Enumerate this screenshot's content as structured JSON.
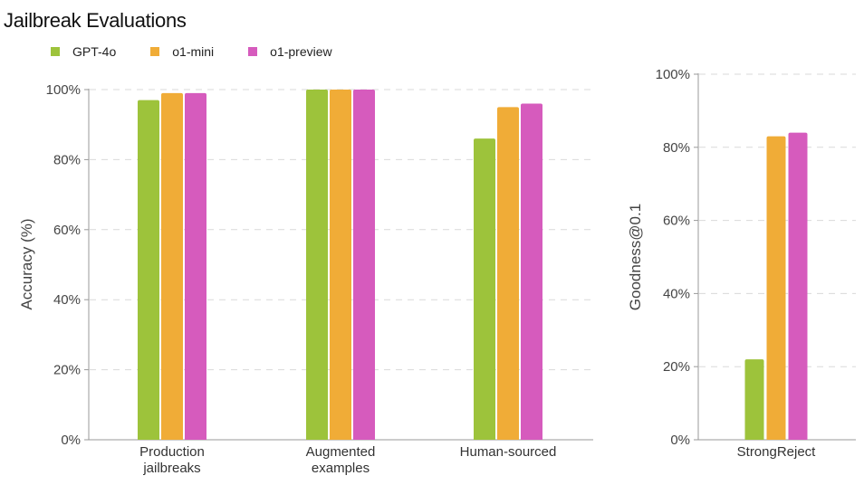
{
  "title": "Jailbreak Evaluations",
  "legend": [
    {
      "label": "GPT-4o",
      "color": "#9dc33b"
    },
    {
      "label": "o1-mini",
      "color": "#f0ac37"
    },
    {
      "label": "o1-preview",
      "color": "#d65bbd"
    }
  ],
  "chart_data": [
    {
      "type": "bar",
      "title": "Jailbreak Evaluations",
      "xlabel": "",
      "ylabel": "Accuracy (%)",
      "ylim": [
        0,
        100
      ],
      "yticks": [
        "0%",
        "20%",
        "40%",
        "60%",
        "80%",
        "100%"
      ],
      "ytick_values": [
        0,
        20,
        40,
        60,
        80,
        100
      ],
      "grid": true,
      "legend_position": "top-left",
      "categories": [
        [
          "Production",
          "jailbreaks"
        ],
        [
          "Augmented",
          "examples"
        ],
        [
          "Human-sourced"
        ]
      ],
      "series": [
        {
          "name": "GPT-4o",
          "values": [
            97,
            100,
            86
          ]
        },
        {
          "name": "o1-mini",
          "values": [
            99,
            100,
            95
          ]
        },
        {
          "name": "o1-preview",
          "values": [
            99,
            100,
            96
          ]
        }
      ]
    },
    {
      "type": "bar",
      "xlabel": "",
      "ylabel": "Goodness@0.1",
      "ylim": [
        0,
        100
      ],
      "yticks": [
        "0%",
        "20%",
        "40%",
        "60%",
        "80%",
        "100%"
      ],
      "ytick_values": [
        0,
        20,
        40,
        60,
        80,
        100
      ],
      "grid": true,
      "categories": [
        [
          "StrongReject"
        ]
      ],
      "series": [
        {
          "name": "GPT-4o",
          "values": [
            22
          ]
        },
        {
          "name": "o1-mini",
          "values": [
            83
          ]
        },
        {
          "name": "o1-preview",
          "values": [
            84
          ]
        }
      ]
    }
  ]
}
